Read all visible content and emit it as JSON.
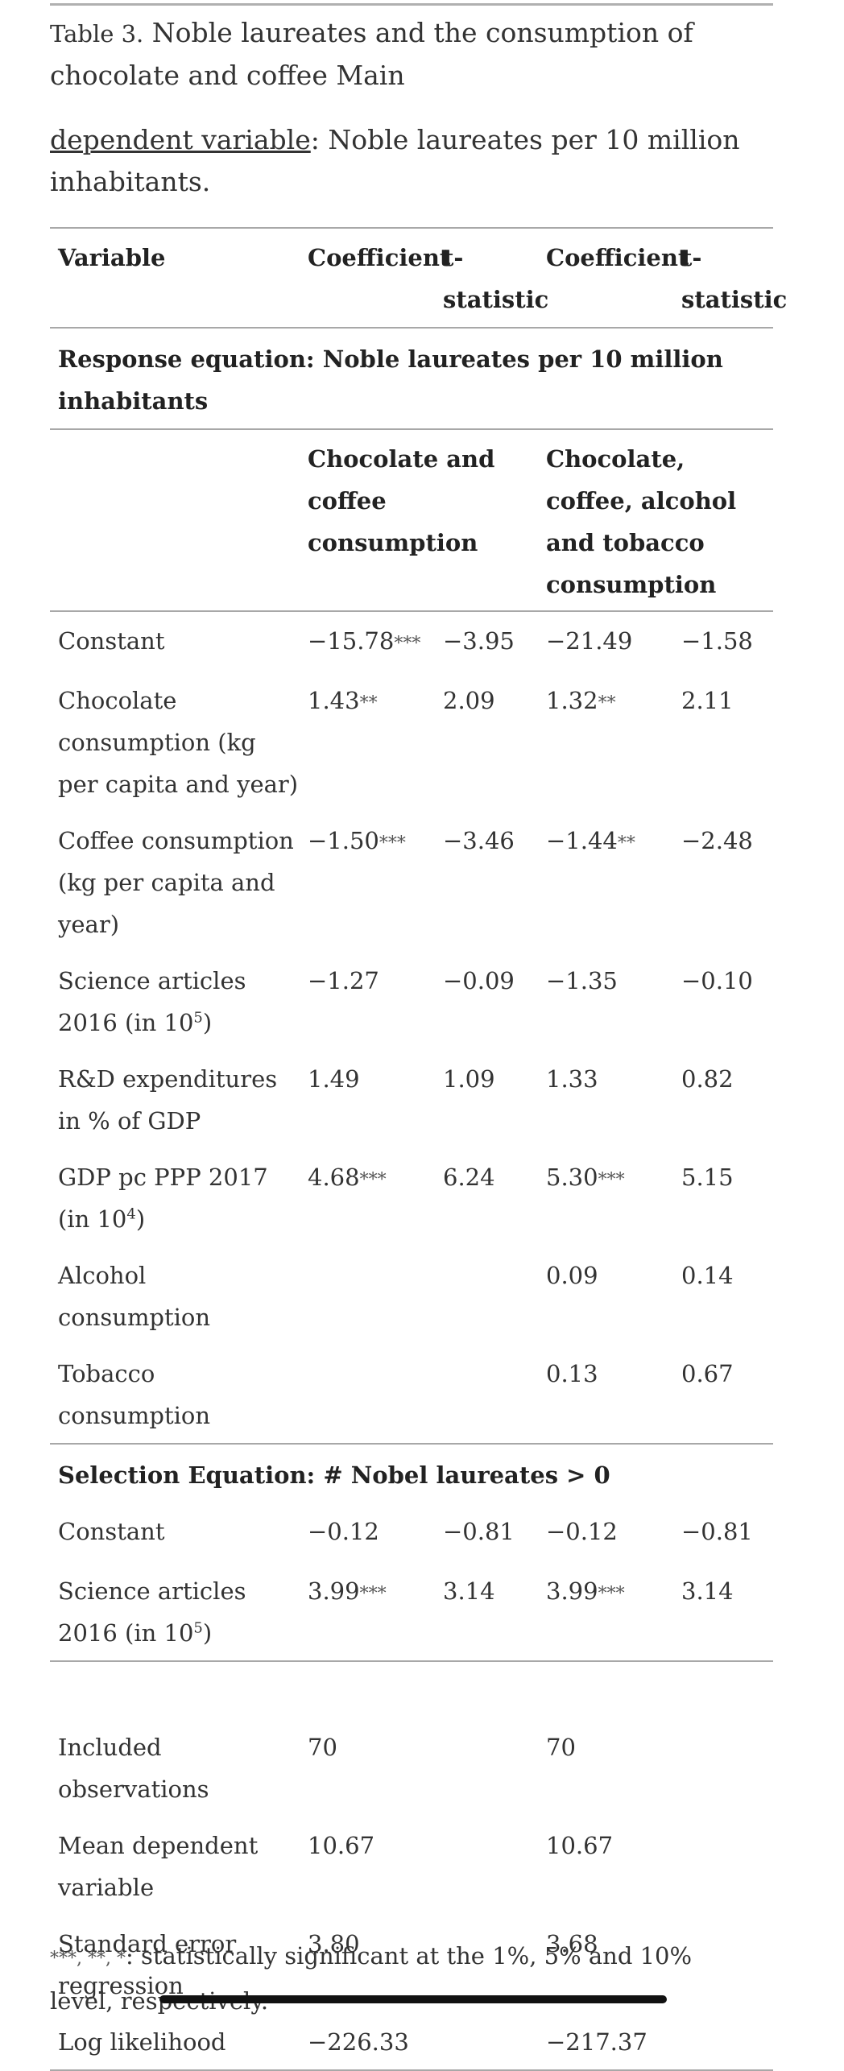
{
  "caption": {
    "label": "Table 3.",
    "title": "Noble laureates and the consumption of chocolate and coffee Main",
    "dv_link": "dependent variable",
    "dv_text": ": Noble laureates per 10 million inhabitants."
  },
  "header": [
    "Variable",
    "Coefficient",
    "t-statistic",
    "Coefficient",
    "t-statistic"
  ],
  "response_title": "Response equation: Noble laureates per 10 million inhabitants",
  "models": [
    "Chocolate and coffee consumption",
    "Chocolate, coffee, alcohol and tobacco consumption"
  ],
  "rows": [
    {
      "name": "Constant",
      "c1": "−15.78",
      "s1": "***",
      "t1": "−3.95",
      "c2": "−21.49",
      "s2": "",
      "t2": "−1.58"
    },
    {
      "name": "Chocolate consumption (kg per capita and year)",
      "c1": "1.43",
      "s1": "**",
      "t1": "2.09",
      "c2": "1.32",
      "s2": "**",
      "t2": "2.11"
    },
    {
      "name": "Coffee consumption (kg per capita and year)",
      "c1": "−1.50",
      "s1": "***",
      "t1": "−3.46",
      "c2": "−1.44",
      "s2": "**",
      "t2": "−2.48"
    },
    {
      "name_pre": "Science articles 2016 (in 10",
      "name_sup": "5",
      "name_post": ")",
      "c1": "−1.27",
      "s1": "",
      "t1": "−0.09",
      "c2": "−1.35",
      "s2": "",
      "t2": "−0.10"
    },
    {
      "name": "R&D expenditures in % of GDP",
      "c1": "1.49",
      "s1": "",
      "t1": "1.09",
      "c2": "1.33",
      "s2": "",
      "t2": "0.82"
    },
    {
      "name_pre": "GDP pc PPP 2017 (in 10",
      "name_sup": "4",
      "name_post": ")",
      "c1": "4.68",
      "s1": "***",
      "t1": "6.24",
      "c2": "5.30",
      "s2": "***",
      "t2": "5.15"
    },
    {
      "name": "Alcohol consumption",
      "c1": "",
      "s1": "",
      "t1": "",
      "c2": "0.09",
      "s2": "",
      "t2": "0.14"
    },
    {
      "name": "Tobacco consumption",
      "c1": "",
      "s1": "",
      "t1": "",
      "c2": "0.13",
      "s2": "",
      "t2": "0.67"
    }
  ],
  "selection_title": "Selection Equation: # Nobel laureates > 0",
  "selection_rows": [
    {
      "name": "Constant",
      "c1": "−0.12",
      "s1": "",
      "t1": "−0.81",
      "c2": "−0.12",
      "s2": "",
      "t2": "−0.81"
    },
    {
      "name_pre": "Science articles 2016 (in 10",
      "name_sup": "5",
      "name_post": ")",
      "c1": "3.99",
      "s1": "***",
      "t1": "3.14",
      "c2": "3.99",
      "s2": "***",
      "t2": "3.14"
    }
  ],
  "stats": [
    {
      "name": "Included observations",
      "v1": "70",
      "v2": "70"
    },
    {
      "name": "Mean dependent variable",
      "v1": "10.67",
      "v2": "10.67"
    },
    {
      "name": "Standard error regression",
      "v1": "3.80",
      "v2": "3.68"
    },
    {
      "name": "Log likelihood",
      "v1": "−226.33",
      "v2": "−217.37"
    }
  ],
  "footnote": {
    "stars": "***, **, *",
    "text": ": statistically significant at the 1%, 5% and 10% level, respectively."
  }
}
